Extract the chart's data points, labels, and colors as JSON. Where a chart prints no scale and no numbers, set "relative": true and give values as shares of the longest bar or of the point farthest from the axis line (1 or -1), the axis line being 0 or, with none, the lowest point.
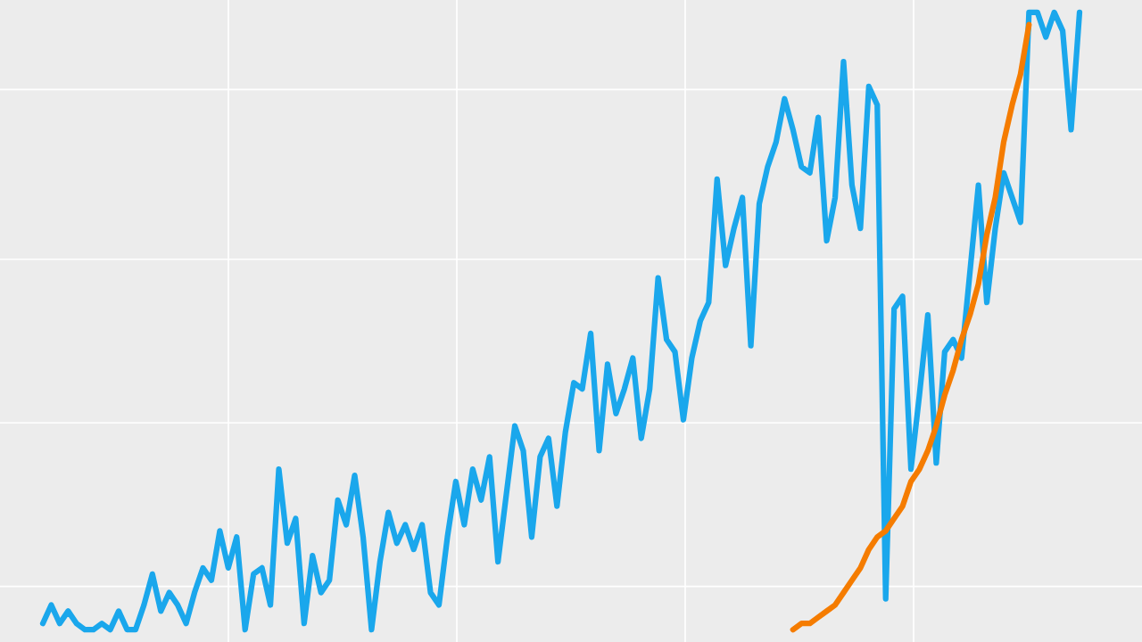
{
  "chart_data": {
    "type": "line",
    "relative": true,
    "grid": true,
    "legend": false,
    "marker": "none",
    "line_style": "solid",
    "categories": [
      null,
      null,
      null,
      null,
      null,
      null,
      null,
      null,
      null,
      null,
      null,
      null,
      null,
      null,
      null,
      null,
      null,
      null,
      null,
      null,
      null,
      null,
      null,
      null,
      null,
      null,
      null,
      null,
      null,
      null,
      null,
      null,
      null,
      null,
      null,
      null,
      null,
      null,
      null,
      null,
      null,
      null,
      null,
      null,
      null,
      null,
      null,
      null,
      null,
      null,
      null,
      null,
      null,
      null,
      null,
      null,
      null,
      null,
      null,
      null,
      null,
      null,
      null,
      null,
      null,
      null,
      null,
      null,
      null,
      null,
      null,
      null,
      null,
      null,
      null,
      null,
      null,
      null,
      null,
      null,
      null,
      null,
      null,
      null,
      null,
      null,
      null,
      null,
      null,
      null,
      null,
      null,
      null,
      null,
      null,
      null,
      null,
      null,
      null,
      null,
      null,
      null,
      null,
      null,
      null,
      null,
      null,
      null,
      null,
      null,
      null,
      null,
      null,
      null,
      null,
      null,
      null,
      null,
      null,
      null,
      null,
      null,
      null,
      null
    ],
    "series": [
      {
        "color": "#1aa7ec",
        "values": [
          0.01,
          0.04,
          0.01,
          0.03,
          0.01,
          0,
          0,
          0.01,
          0,
          0.03,
          0,
          0,
          0.04,
          0.09,
          0.03,
          0.06,
          0.04,
          0.01,
          0.06,
          0.1,
          0.08,
          0.16,
          0.1,
          0.15,
          0,
          0.09,
          0.1,
          0.04,
          0.26,
          0.14,
          0.18,
          0.01,
          0.12,
          0.06,
          0.08,
          0.21,
          0.17,
          0.25,
          0.15,
          0,
          0.11,
          0.19,
          0.14,
          0.17,
          0.13,
          0.17,
          0.06,
          0.04,
          0.15,
          0.24,
          0.17,
          0.26,
          0.21,
          0.28,
          0.11,
          0.22,
          0.33,
          0.29,
          0.15,
          0.28,
          0.31,
          0.2,
          0.32,
          0.4,
          0.39,
          0.48,
          0.29,
          0.43,
          0.35,
          0.39,
          0.44,
          0.31,
          0.39,
          0.57,
          0.47,
          0.45,
          0.34,
          0.44,
          0.5,
          0.53,
          0.73,
          0.59,
          0.65,
          0.7,
          0.46,
          0.69,
          0.75,
          0.79,
          0.86,
          0.81,
          0.75,
          0.74,
          0.83,
          0.63,
          0.7,
          0.92,
          0.72,
          0.65,
          0.88,
          0.85,
          0.05,
          0.52,
          0.54,
          0.26,
          0.38,
          0.51,
          0.27,
          0.45,
          0.47,
          0.44,
          0.58,
          0.72,
          0.53,
          0.65,
          0.74,
          0.7,
          0.66,
          1,
          1,
          0.96,
          1,
          0.97,
          0.81,
          1
        ]
      },
      {
        "color": "#f57c00",
        "values": [
          null,
          null,
          null,
          null,
          null,
          null,
          null,
          null,
          null,
          null,
          null,
          null,
          null,
          null,
          null,
          null,
          null,
          null,
          null,
          null,
          null,
          null,
          null,
          null,
          null,
          null,
          null,
          null,
          null,
          null,
          null,
          null,
          null,
          null,
          null,
          null,
          null,
          null,
          null,
          null,
          null,
          null,
          null,
          null,
          null,
          null,
          null,
          null,
          null,
          null,
          null,
          null,
          null,
          null,
          null,
          null,
          null,
          null,
          null,
          null,
          null,
          null,
          null,
          null,
          null,
          null,
          null,
          null,
          null,
          null,
          null,
          null,
          null,
          null,
          null,
          null,
          null,
          null,
          null,
          null,
          null,
          null,
          null,
          null,
          null,
          null,
          null,
          null,
          null,
          0,
          0.01,
          0.01,
          0.02,
          0.03,
          0.04,
          0.06,
          0.08,
          0.1,
          0.13,
          0.15,
          0.16,
          0.18,
          0.2,
          0.24,
          0.26,
          0.29,
          0.33,
          0.38,
          0.42,
          0.47,
          0.51,
          0.56,
          0.64,
          0.7,
          0.79,
          0.85,
          0.9,
          0.98,
          null,
          null,
          null,
          null,
          null,
          null
        ]
      }
    ]
  }
}
